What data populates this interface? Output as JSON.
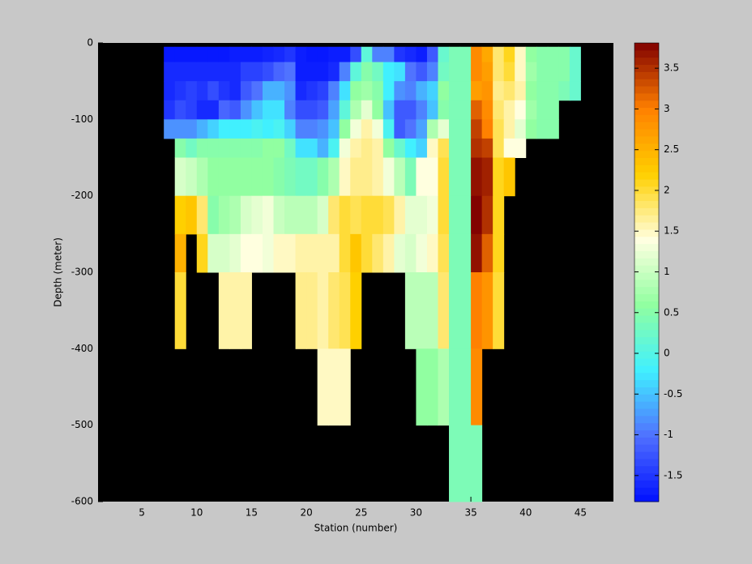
{
  "chart_data": {
    "type": "heatmap",
    "xlabel": "Station (number)",
    "ylabel": "Depth (meter)",
    "xlim": [
      1,
      48
    ],
    "ylim": [
      -600,
      0
    ],
    "xticks": [
      5,
      10,
      15,
      20,
      25,
      30,
      35,
      40,
      45
    ],
    "yticks": [
      0,
      -100,
      -200,
      -300,
      -400,
      -500,
      -600
    ],
    "xbins": [
      7,
      8,
      9,
      10,
      11,
      12,
      13,
      14,
      15,
      16,
      17,
      18,
      19,
      20,
      21,
      22,
      23,
      24,
      25,
      26,
      27,
      28,
      29,
      30,
      31,
      32,
      33,
      34,
      35,
      36,
      37,
      38,
      39,
      40,
      41,
      42,
      43,
      44,
      45
    ],
    "ybins": [
      -5,
      -25,
      -50,
      -75,
      -100,
      -125,
      -150,
      -200,
      -250,
      -300,
      -400,
      -500,
      -600
    ],
    "values": [
      [
        -1.75,
        -1.75,
        -1.75,
        -1.75,
        -1.75,
        -1.75,
        -1.7,
        -1.7,
        -1.7,
        -1.65,
        -1.6,
        -1.5,
        -1.7,
        -1.75,
        -1.75,
        -1.7,
        -1.7,
        -1.3,
        0.1,
        -0.9,
        -0.9,
        -1.5,
        -1.6,
        -1.7,
        -1.2,
        0.2,
        0.4,
        0.4,
        2.9,
        2.6,
        1.8,
        2.1,
        1.5,
        0.6,
        0.5,
        0.5,
        0.5,
        0.2
      ],
      [
        -1.6,
        -1.6,
        -1.6,
        -1.6,
        -1.6,
        -1.6,
        -1.6,
        -1.4,
        -1.4,
        -1.3,
        -1.1,
        -1.0,
        -1.7,
        -1.7,
        -1.7,
        -1.6,
        -0.9,
        0.1,
        0.5,
        0.3,
        -0.2,
        -0.3,
        -1.0,
        -1.2,
        -0.9,
        0.3,
        0.4,
        0.4,
        2.9,
        2.7,
        1.8,
        2.0,
        1.5,
        0.7,
        0.5,
        0.5,
        0.5,
        0.2
      ],
      [
        -1.6,
        -1.5,
        -1.4,
        -1.5,
        -1.3,
        -1.5,
        -1.6,
        -1.2,
        -1.0,
        -0.6,
        -0.6,
        -0.8,
        -1.6,
        -1.5,
        -1.4,
        -0.9,
        -0.3,
        0.6,
        0.7,
        0.5,
        -0.2,
        -0.8,
        -0.9,
        -0.6,
        -0.4,
        0.6,
        0.4,
        0.4,
        2.7,
        2.8,
        1.7,
        1.8,
        1.6,
        0.6,
        0.5,
        0.5,
        0.4,
        0.2
      ],
      [
        -1.5,
        -1.3,
        -1.4,
        -1.6,
        -1.6,
        -1.1,
        -1.2,
        -0.8,
        -0.5,
        -0.3,
        -0.3,
        -0.9,
        -1.3,
        -1.3,
        -1.2,
        -0.7,
        0.1,
        0.8,
        1.2,
        0.6,
        -0.5,
        -1.2,
        -1.2,
        -0.9,
        -0.5,
        0.5,
        0.4,
        0.4,
        3.2,
        2.9,
        1.8,
        1.6,
        1.4,
        0.7,
        0.5,
        0.5,
        null,
        null
      ],
      [
        -0.8,
        -0.8,
        -0.8,
        -0.6,
        -0.4,
        -0.2,
        -0.2,
        -0.2,
        -0.1,
        -0.2,
        -0.1,
        -0.4,
        -0.9,
        -0.9,
        -0.8,
        -0.5,
        0.6,
        1.3,
        1.6,
        1.3,
        -0.1,
        -1.2,
        -1.0,
        -0.7,
        0.8,
        1.2,
        0.4,
        0.4,
        3.4,
        3.0,
        1.9,
        1.6,
        1.2,
        0.6,
        0.5,
        0.5,
        null,
        null
      ],
      [
        null,
        0.5,
        0.3,
        0.5,
        0.5,
        0.5,
        0.5,
        0.5,
        0.5,
        0.6,
        0.6,
        0.3,
        -0.3,
        -0.3,
        -0.6,
        -0.1,
        1.3,
        1.6,
        1.7,
        1.6,
        0.6,
        0.2,
        -0.2,
        -0.4,
        1.5,
        1.9,
        0.4,
        0.4,
        3.5,
        3.4,
        1.9,
        1.4,
        1.4,
        null,
        null,
        null,
        null,
        null
      ],
      [
        null,
        1.1,
        1.0,
        0.8,
        0.6,
        0.6,
        0.6,
        0.6,
        0.6,
        0.6,
        0.5,
        0.4,
        0.3,
        0.3,
        0.5,
        0.8,
        1.5,
        1.7,
        1.7,
        1.6,
        1.3,
        0.9,
        0.4,
        1.4,
        1.4,
        2.0,
        0.4,
        0.4,
        3.7,
        3.6,
        2.1,
        2.3,
        null,
        null,
        null,
        null,
        null,
        null
      ],
      [
        null,
        2.2,
        2.3,
        1.8,
        0.5,
        0.7,
        0.8,
        1.1,
        1.2,
        1.3,
        1.0,
        0.9,
        0.9,
        0.9,
        1.1,
        1.8,
        2.0,
        1.9,
        2.0,
        2.0,
        1.9,
        1.6,
        1.2,
        1.2,
        1.3,
        2.0,
        0.4,
        0.4,
        3.8,
        3.5,
        2.1,
        null,
        null,
        null,
        null,
        null,
        null,
        null
      ],
      [
        null,
        2.5,
        null,
        2.1,
        1.1,
        1.1,
        1.2,
        1.4,
        1.4,
        1.3,
        1.5,
        1.5,
        1.6,
        1.6,
        1.6,
        1.6,
        2.0,
        2.3,
        2.0,
        1.8,
        1.6,
        1.2,
        1.1,
        1.3,
        1.5,
        1.9,
        0.4,
        0.4,
        3.7,
        3.2,
        2.1,
        null,
        null,
        null,
        null,
        null,
        null,
        null
      ],
      [
        null,
        2.0,
        null,
        null,
        null,
        1.6,
        1.6,
        1.6,
        null,
        null,
        null,
        null,
        1.7,
        1.7,
        1.6,
        1.8,
        1.9,
        2.2,
        null,
        null,
        null,
        null,
        0.9,
        0.9,
        0.9,
        1.8,
        0.4,
        0.4,
        3.0,
        2.8,
        2.0,
        null,
        null,
        null,
        null,
        null,
        null,
        null
      ],
      [
        null,
        null,
        null,
        null,
        null,
        null,
        null,
        null,
        null,
        null,
        null,
        null,
        null,
        null,
        1.5,
        1.5,
        1.5,
        null,
        null,
        null,
        null,
        null,
        null,
        0.6,
        0.6,
        0.8,
        0.4,
        0.4,
        2.9,
        null,
        null,
        null,
        null,
        null,
        null,
        null,
        null,
        null
      ],
      [
        null,
        null,
        null,
        null,
        null,
        null,
        null,
        null,
        null,
        null,
        null,
        null,
        null,
        null,
        null,
        null,
        null,
        null,
        null,
        null,
        null,
        null,
        null,
        null,
        null,
        null,
        0.4,
        0.4,
        0.4,
        null,
        null,
        null,
        null,
        null,
        null,
        null,
        null,
        null
      ]
    ],
    "clim": [
      -1.82,
      3.81
    ],
    "colorbar_ticks": [
      -1.5,
      -1,
      -0.5,
      0,
      0.5,
      1,
      1.5,
      2,
      2.5,
      3,
      3.5
    ],
    "colormap": [
      "#0010ff",
      "#5070ff",
      "#40f0ff",
      "#90ffa0",
      "#ffffe0",
      "#ffd000",
      "#ff8000",
      "#800000"
    ],
    "background": "#000000"
  }
}
